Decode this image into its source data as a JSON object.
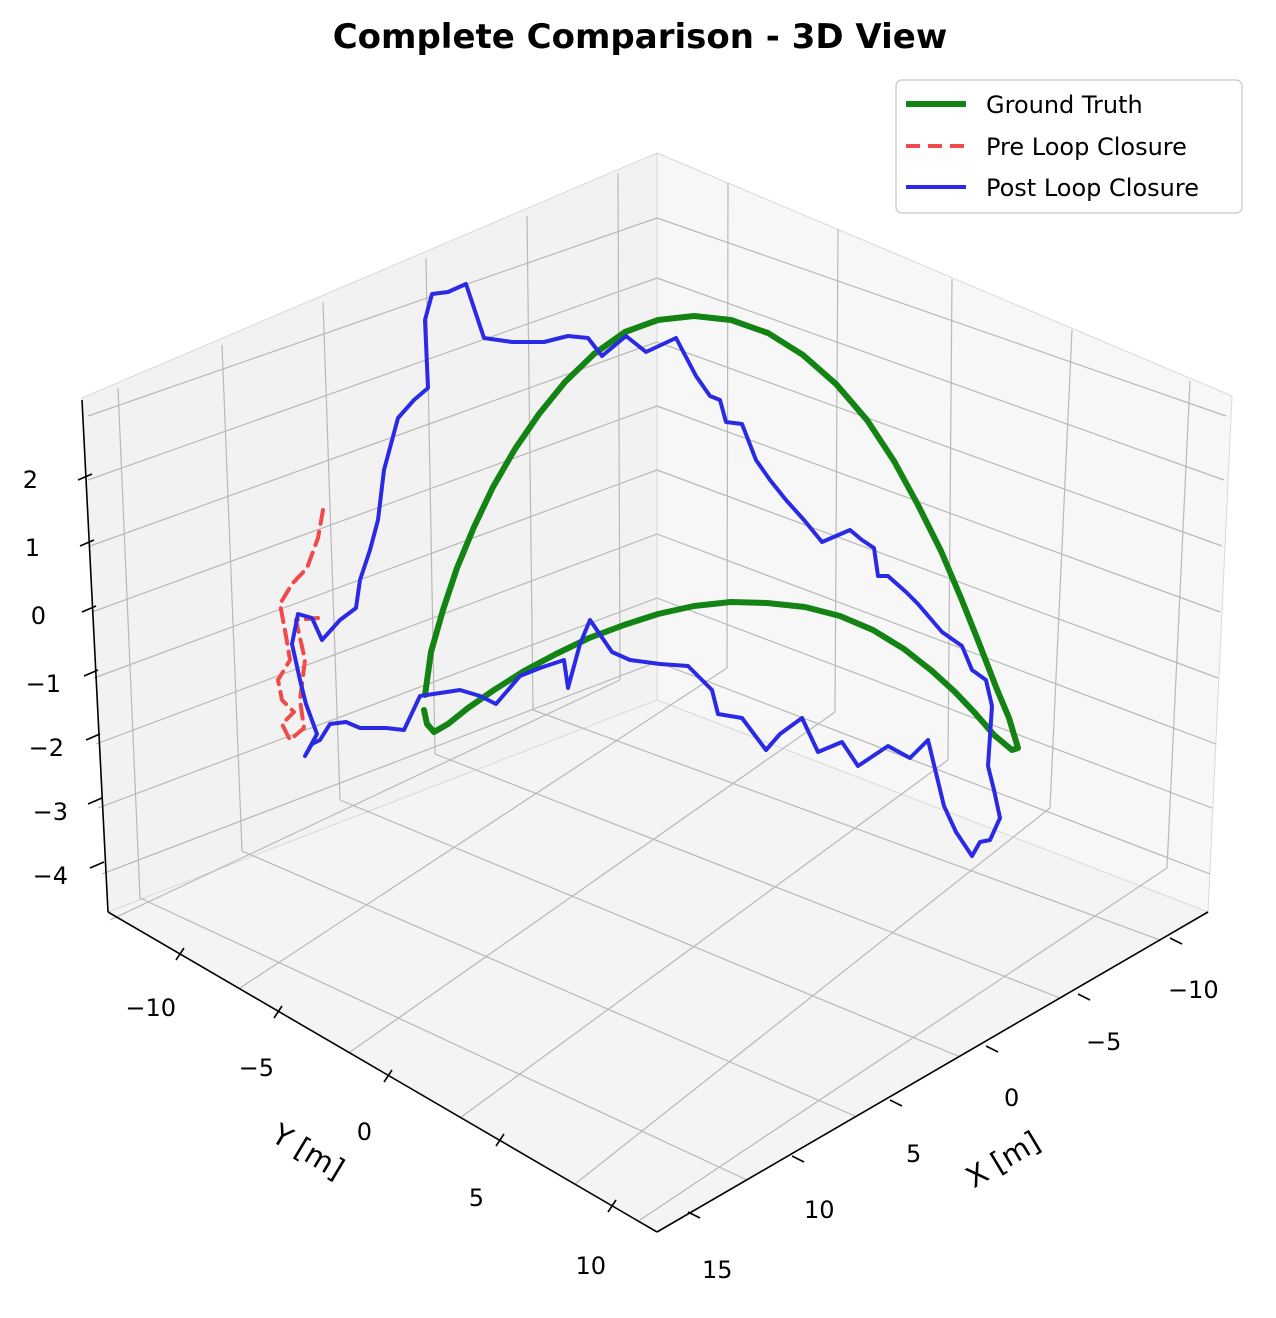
{
  "chart_data": {
    "type": "line",
    "title": "Complete Comparison - 3D View",
    "xlabel": "X [m]",
    "ylabel": "Y [m]",
    "zlabel": "",
    "grid": true,
    "legend_position": "top-right",
    "x_ticks": [
      "−10",
      "−5",
      "0",
      "5",
      "10",
      "15"
    ],
    "y_ticks": [
      "−10",
      "−5",
      "0",
      "5",
      "10"
    ],
    "z_ticks": [
      "−4",
      "−3",
      "−2",
      "−1",
      "0",
      "1",
      "2"
    ],
    "series": [
      {
        "name": "Ground Truth",
        "color": "#138313",
        "style": "solid",
        "points": [
          [
            425,
            695
          ],
          [
            431,
            652
          ],
          [
            443,
            610
          ],
          [
            457,
            568
          ],
          [
            474,
            527
          ],
          [
            493,
            487
          ],
          [
            515,
            449
          ],
          [
            539,
            414
          ],
          [
            565,
            382
          ],
          [
            594,
            354
          ],
          [
            625,
            332
          ],
          [
            658,
            320
          ],
          [
            694,
            316
          ],
          [
            731,
            320
          ],
          [
            768,
            333
          ],
          [
            803,
            355
          ],
          [
            836,
            384
          ],
          [
            867,
            420
          ],
          [
            894,
            461
          ],
          [
            918,
            505
          ],
          [
            941,
            551
          ],
          [
            961,
            598
          ],
          [
            979,
            643
          ],
          [
            996,
            687
          ],
          [
            1009,
            718
          ],
          [
            1018,
            748
          ],
          [
            1012,
            750
          ],
          [
            994,
            735
          ],
          [
            975,
            713
          ],
          [
            955,
            692
          ],
          [
            932,
            671
          ],
          [
            904,
            649
          ],
          [
            873,
            630
          ],
          [
            840,
            616
          ],
          [
            805,
            607
          ],
          [
            767,
            603
          ],
          [
            731,
            602
          ],
          [
            694,
            606
          ],
          [
            658,
            614
          ],
          [
            624,
            625
          ],
          [
            589,
            638
          ],
          [
            556,
            654
          ],
          [
            524,
            671
          ],
          [
            494,
            690
          ],
          [
            468,
            708
          ],
          [
            448,
            724
          ],
          [
            434,
            732
          ],
          [
            427,
            724
          ],
          [
            424,
            710
          ]
        ]
      },
      {
        "name": "Pre Loop Closure",
        "color": "#f04a4a",
        "style": "dashed",
        "points": [
          [
            323,
            510
          ],
          [
            318,
            538
          ],
          [
            307,
            568
          ],
          [
            292,
            584
          ],
          [
            280,
            604
          ],
          [
            286,
            636
          ],
          [
            290,
            660
          ],
          [
            278,
            680
          ],
          [
            282,
            700
          ],
          [
            294,
            712
          ],
          [
            282,
            724
          ],
          [
            290,
            740
          ],
          [
            304,
            728
          ],
          [
            300,
            700
          ],
          [
            305,
            660
          ],
          [
            296,
            620
          ],
          [
            318,
            618
          ]
        ]
      },
      {
        "name": "Post Loop Closure",
        "color": "#2a2ae6",
        "style": "solid",
        "points": [
          [
            305,
            756
          ],
          [
            317,
            734
          ],
          [
            306,
            704
          ],
          [
            300,
            680
          ],
          [
            292,
            644
          ],
          [
            298,
            614
          ],
          [
            312,
            618
          ],
          [
            322,
            640
          ],
          [
            340,
            620
          ],
          [
            356,
            608
          ],
          [
            360,
            580
          ],
          [
            370,
            550
          ],
          [
            378,
            520
          ],
          [
            384,
            470
          ],
          [
            398,
            418
          ],
          [
            414,
            400
          ],
          [
            428,
            388
          ],
          [
            425,
            320
          ],
          [
            432,
            294
          ],
          [
            448,
            292
          ],
          [
            466,
            284
          ],
          [
            484,
            338
          ],
          [
            512,
            342
          ],
          [
            544,
            342
          ],
          [
            568,
            336
          ],
          [
            588,
            338
          ],
          [
            602,
            356
          ],
          [
            626,
            336
          ],
          [
            646,
            352
          ],
          [
            676,
            338
          ],
          [
            696,
            376
          ],
          [
            710,
            396
          ],
          [
            720,
            400
          ],
          [
            726,
            422
          ],
          [
            742,
            424
          ],
          [
            756,
            460
          ],
          [
            770,
            480
          ],
          [
            786,
            500
          ],
          [
            804,
            520
          ],
          [
            822,
            542
          ],
          [
            850,
            530
          ],
          [
            862,
            540
          ],
          [
            874,
            548
          ],
          [
            878,
            576
          ],
          [
            888,
            576
          ],
          [
            906,
            592
          ],
          [
            918,
            604
          ],
          [
            942,
            632
          ],
          [
            962,
            646
          ],
          [
            972,
            670
          ],
          [
            986,
            680
          ],
          [
            992,
            706
          ],
          [
            988,
            766
          ],
          [
            994,
            790
          ],
          [
            1000,
            818
          ],
          [
            990,
            840
          ],
          [
            980,
            842
          ],
          [
            972,
            856
          ],
          [
            956,
            832
          ],
          [
            944,
            806
          ],
          [
            928,
            740
          ],
          [
            910,
            758
          ],
          [
            888,
            746
          ],
          [
            858,
            766
          ],
          [
            842,
            742
          ],
          [
            818,
            752
          ],
          [
            802,
            718
          ],
          [
            780,
            734
          ],
          [
            766,
            750
          ],
          [
            742,
            718
          ],
          [
            718,
            714
          ],
          [
            712,
            690
          ],
          [
            688,
            666
          ],
          [
            660,
            664
          ],
          [
            630,
            660
          ],
          [
            612,
            652
          ],
          [
            590,
            620
          ],
          [
            580,
            644
          ],
          [
            568,
            688
          ],
          [
            564,
            660
          ],
          [
            540,
            668
          ],
          [
            520,
            676
          ],
          [
            496,
            704
          ],
          [
            480,
            696
          ],
          [
            460,
            690
          ],
          [
            420,
            696
          ],
          [
            404,
            730
          ],
          [
            386,
            728
          ],
          [
            360,
            728
          ],
          [
            346,
            722
          ],
          [
            330,
            724
          ],
          [
            320,
            740
          ],
          [
            312,
            744
          ],
          [
            305,
            756
          ]
        ]
      }
    ]
  }
}
